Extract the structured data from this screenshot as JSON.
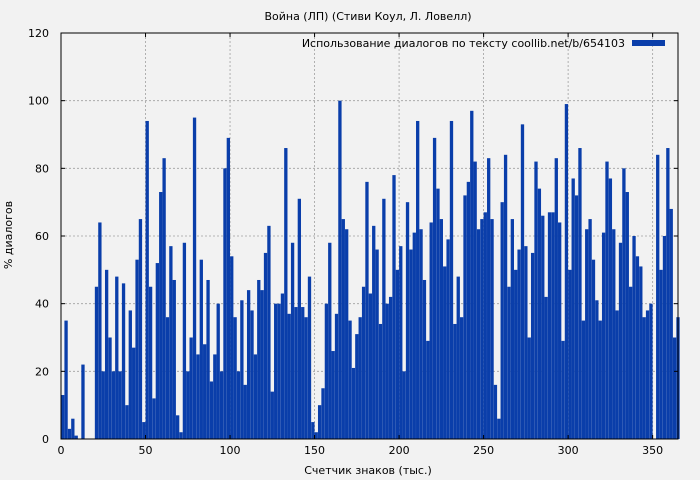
{
  "chart_data": {
    "type": "bar",
    "title": "Война (ЛП) (Стиви Коул, Л. Ловелл)",
    "xlabel": "Счетчик знаков (тыс.)",
    "ylabel": "% диалогов",
    "xlim": [
      0,
      365
    ],
    "ylim": [
      0,
      120
    ],
    "xticks": [
      0,
      50,
      100,
      150,
      200,
      250,
      300,
      350
    ],
    "yticks": [
      0,
      20,
      40,
      60,
      80,
      100,
      120
    ],
    "grid": true,
    "legend_position": "top-right",
    "series": [
      {
        "name": "Использование диалогов по тексту coollib.net/b/654103",
        "color": "#0a3eaa",
        "x": [
          1,
          3,
          5,
          7,
          9,
          11,
          13,
          15,
          17,
          19,
          21,
          23,
          25,
          27,
          29,
          31,
          33,
          35,
          37,
          39,
          41,
          43,
          45,
          47,
          49,
          51,
          53,
          55,
          57,
          59,
          61,
          63,
          65,
          67,
          69,
          71,
          73,
          75,
          77,
          79,
          81,
          83,
          85,
          87,
          89,
          91,
          93,
          95,
          97,
          99,
          101,
          103,
          105,
          107,
          109,
          111,
          113,
          115,
          117,
          119,
          121,
          123,
          125,
          127,
          129,
          131,
          133,
          135,
          137,
          139,
          141,
          143,
          145,
          147,
          149,
          151,
          153,
          155,
          157,
          159,
          161,
          163,
          165,
          167,
          169,
          171,
          173,
          175,
          177,
          179,
          181,
          183,
          185,
          187,
          189,
          191,
          193,
          195,
          197,
          199,
          201,
          203,
          205,
          207,
          209,
          211,
          213,
          215,
          217,
          219,
          221,
          223,
          225,
          227,
          229,
          231,
          233,
          235,
          237,
          239,
          241,
          243,
          245,
          247,
          249,
          251,
          253,
          255,
          257,
          259,
          261,
          263,
          265,
          267,
          269,
          271,
          273,
          275,
          277,
          279,
          281,
          283,
          285,
          287,
          289,
          291,
          293,
          295,
          297,
          299,
          301,
          303,
          305,
          307,
          309,
          311,
          313,
          315,
          317,
          319,
          321,
          323,
          325,
          327,
          329,
          331,
          333,
          335,
          337,
          339,
          341,
          343,
          345,
          347,
          349,
          351,
          353,
          355,
          357,
          359,
          361,
          363,
          365
        ],
        "values": [
          13,
          35,
          3,
          6,
          1,
          0,
          22,
          0,
          0,
          0,
          45,
          64,
          20,
          50,
          30,
          20,
          48,
          20,
          46,
          10,
          38,
          27,
          53,
          65,
          5,
          94,
          45,
          12,
          52,
          73,
          83,
          36,
          57,
          47,
          7,
          2,
          58,
          20,
          30,
          95,
          25,
          53,
          28,
          47,
          17,
          25,
          40,
          20,
          80,
          89,
          54,
          36,
          20,
          41,
          16,
          44,
          38,
          25,
          47,
          44,
          55,
          63,
          14,
          40,
          40,
          43,
          86,
          37,
          58,
          39,
          71,
          39,
          36,
          48,
          5,
          2,
          10,
          15,
          40,
          58,
          26,
          37,
          100,
          65,
          62,
          35,
          21,
          31,
          36,
          45,
          76,
          43,
          63,
          56,
          34,
          71,
          40,
          42,
          78,
          50,
          57,
          20,
          70,
          56,
          61,
          94,
          62,
          47,
          29,
          64,
          89,
          74,
          65,
          51,
          59,
          94,
          34,
          48,
          36,
          72,
          76,
          97,
          82,
          62,
          65,
          67,
          83,
          65,
          16,
          6,
          70,
          84,
          45,
          65,
          50,
          56,
          93,
          57,
          30,
          55,
          82,
          74,
          66,
          42,
          67,
          67,
          83,
          64,
          29,
          99,
          50,
          77,
          72,
          86,
          35,
          62,
          65,
          53,
          41,
          35,
          61,
          82,
          77,
          62,
          38,
          58,
          80,
          73,
          45,
          60,
          54,
          51,
          36,
          38,
          40,
          0,
          84,
          50,
          60,
          86,
          68,
          30,
          36
        ]
      }
    ]
  }
}
